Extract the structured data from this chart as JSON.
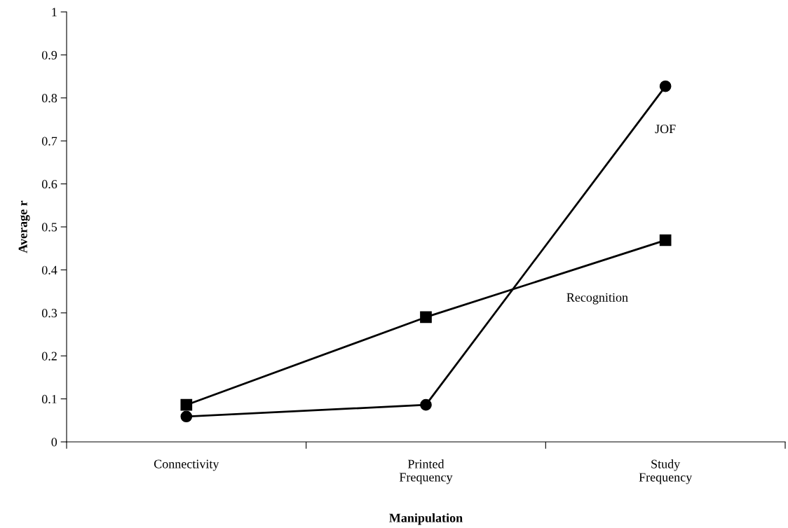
{
  "chart_data": {
    "type": "line",
    "xlabel": "Manipulation",
    "ylabel": "Average r",
    "categories": [
      "Connectivity",
      "Printed\nFrequency",
      "Study\nFrequency"
    ],
    "series": [
      {
        "name": "JOF",
        "color": "#000000",
        "marker": "circle",
        "values": [
          0.059,
          0.086,
          0.827
        ]
      },
      {
        "name": "Recognition",
        "color": "#000000",
        "marker": "square",
        "values": [
          0.086,
          0.29,
          0.469
        ]
      }
    ],
    "ylim": [
      0,
      1
    ],
    "yticks": [
      0,
      0.1,
      0.2,
      0.3,
      0.4,
      0.5,
      0.6,
      0.7,
      0.8,
      0.9,
      1
    ],
    "grid": false,
    "legend": false
  }
}
